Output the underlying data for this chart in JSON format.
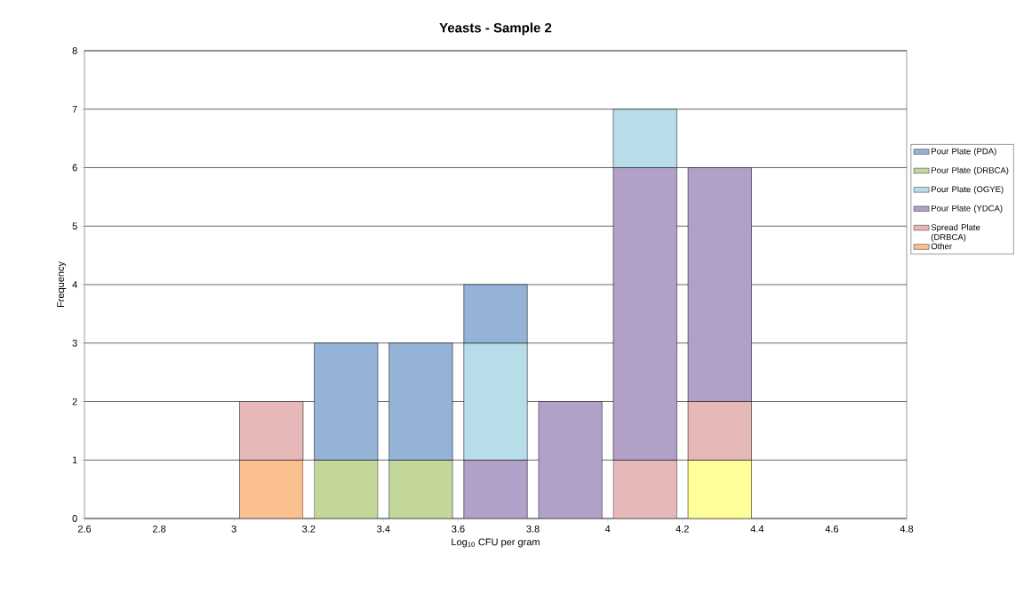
{
  "chart_data": {
    "type": "bar",
    "stacked": true,
    "title": "Yeasts - Sample 2",
    "xlabel": "Log$_{10}$ CFU per gram",
    "ylabel": "Frequency",
    "x": [
      3.1,
      3.3,
      3.5,
      3.7,
      3.9,
      4.1,
      4.3
    ],
    "series": [
      {
        "color": "#ffff99",
        "values": [
          null,
          null,
          null,
          null,
          null,
          null,
          1
        ]
      },
      {
        "name": "Other",
        "color": "#fac090",
        "values": [
          1,
          null,
          null,
          null,
          null,
          null,
          null
        ]
      },
      {
        "name": "Spread Plate (DRBCA)",
        "color": "#e6b9b8",
        "values": [
          1,
          null,
          null,
          null,
          null,
          1,
          1
        ]
      },
      {
        "name": "Pour Plate (YDCA)",
        "color": "#b1a0c7",
        "values": [
          null,
          null,
          null,
          1,
          2,
          5,
          4
        ]
      },
      {
        "name": "Pour Plate (OGYE)",
        "color": "#b7dde8",
        "values": [
          null,
          null,
          null,
          2,
          null,
          1,
          null
        ]
      },
      {
        "name": "Pour Plate (DRBCA)",
        "color": "#c4d79b",
        "values": [
          null,
          1,
          1,
          null,
          null,
          null,
          null
        ]
      },
      {
        "name": "Pour Plate (PDA)",
        "color": "#95b3d7",
        "values": [
          null,
          2,
          2,
          1,
          null,
          null,
          null
        ]
      }
    ],
    "xlim": [
      2.6,
      4.8
    ],
    "xticks": [
      2.6,
      2.8,
      3,
      3.2,
      3.4,
      3.6,
      3.8,
      4,
      4.2,
      4.4,
      4.6,
      4.8
    ],
    "ylim": [
      0,
      8
    ],
    "yticks": [
      0,
      1,
      2,
      3,
      4,
      5,
      6,
      7,
      8
    ],
    "grid": "y",
    "legend": "right"
  }
}
